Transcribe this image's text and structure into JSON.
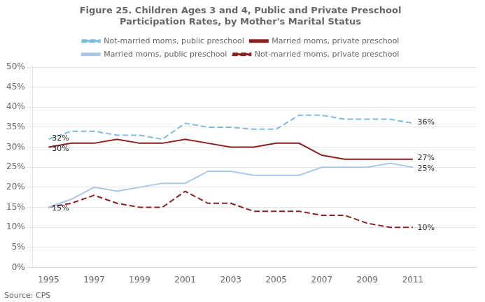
{
  "chart_data": {
    "type": "line",
    "title": "Figure 25. Children Ages 3 and 4, Public and Private Preschool\nParticipation Rates, by Mother's Marital Status",
    "source": "Source: CPS",
    "x": [
      1995,
      1996,
      1997,
      1998,
      1999,
      2000,
      2001,
      2002,
      2003,
      2004,
      2005,
      2006,
      2007,
      2008,
      2009,
      2010,
      2011
    ],
    "series": [
      {
        "name": "Not-married moms, public preschool",
        "color": "#7FBBDC",
        "line_style": "dashed",
        "values": [
          0.32,
          0.34,
          0.34,
          0.33,
          0.33,
          0.32,
          0.36,
          0.35,
          0.35,
          0.345,
          0.345,
          0.38,
          0.38,
          0.37,
          0.37,
          0.37,
          0.36
        ]
      },
      {
        "name": "Married moms, private preschool",
        "color": "#8B2020",
        "line_style": "solid",
        "values": [
          0.3,
          0.31,
          0.31,
          0.32,
          0.31,
          0.31,
          0.32,
          0.31,
          0.3,
          0.3,
          0.31,
          0.31,
          0.28,
          0.27,
          0.27,
          0.27,
          0.27
        ]
      },
      {
        "name": "Married moms, public preschool",
        "color": "#A8C8E8",
        "line_style": "solid",
        "values": [
          0.15,
          0.17,
          0.2,
          0.19,
          0.2,
          0.21,
          0.21,
          0.24,
          0.24,
          0.23,
          0.23,
          0.23,
          0.25,
          0.25,
          0.25,
          0.26,
          0.25
        ]
      },
      {
        "name": "Not-married moms, private preschool",
        "color": "#8B2020",
        "line_style": "dashed",
        "values": [
          0.15,
          0.16,
          0.18,
          0.16,
          0.15,
          0.15,
          0.19,
          0.16,
          0.16,
          0.14,
          0.14,
          0.14,
          0.13,
          0.13,
          0.11,
          0.1,
          0.1
        ]
      }
    ],
    "annotations": [
      {
        "text": "32%",
        "x": 1995.15,
        "y": 0.322
      },
      {
        "text": "30%",
        "x": 1995.15,
        "y": 0.295
      },
      {
        "text": "15%",
        "x": 1995.15,
        "y": 0.147
      },
      {
        "text": "36%",
        "x": 2011.2,
        "y": 0.362
      },
      {
        "text": "27%",
        "x": 2011.2,
        "y": 0.273
      },
      {
        "text": "25%",
        "x": 2011.2,
        "y": 0.247
      },
      {
        "text": "10%",
        "x": 2011.2,
        "y": 0.098
      }
    ],
    "xlim": [
      1994.3,
      2013.8
    ],
    "xticks": [
      1995,
      1997,
      1999,
      2001,
      2003,
      2005,
      2007,
      2009,
      2011
    ],
    "ylim": [
      0,
      0.505
    ],
    "yticks": [
      {
        "value": 0,
        "label": "0%"
      },
      {
        "value": 0.05,
        "label": "5%"
      },
      {
        "value": 0.1,
        "label": "10%"
      },
      {
        "value": 0.15,
        "label": "15%"
      },
      {
        "value": 0.2,
        "label": "20%"
      },
      {
        "value": 0.25,
        "label": "25%"
      },
      {
        "value": 0.3,
        "label": "30%"
      },
      {
        "value": 0.35,
        "label": "35%"
      },
      {
        "value": 0.4,
        "label": "40%"
      },
      {
        "value": 0.45,
        "label": "45%"
      },
      {
        "value": 0.5,
        "label": "50%"
      }
    ],
    "grid": "y",
    "legend": "top"
  }
}
